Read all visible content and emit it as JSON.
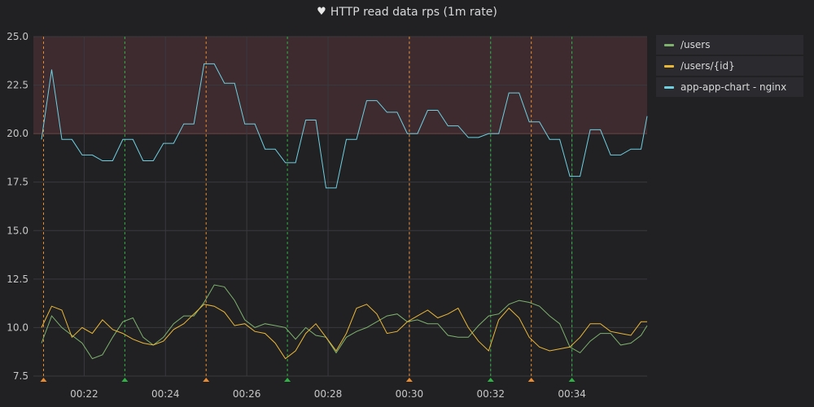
{
  "panel": {
    "title": "HTTP read data rps (1m rate)",
    "icon": "heart-icon"
  },
  "colors": {
    "background": "#212124",
    "grid": "#3a3a3e",
    "threshold_line": "#d44a3a",
    "threshold_fill": "#3d2b2f",
    "annotation_orange": "#ea8c2f",
    "annotation_green": "#2fb344"
  },
  "chart_data": {
    "type": "line",
    "title": "HTTP read data rps (1m rate)",
    "xlabel": "",
    "ylabel": "",
    "x_minutes": [
      20.95,
      21.2,
      21.45,
      21.7,
      21.95,
      22.2,
      22.45,
      22.7,
      22.95,
      23.2,
      23.45,
      23.7,
      23.95,
      24.2,
      24.45,
      24.7,
      24.95,
      25.2,
      25.45,
      25.7,
      25.95,
      26.2,
      26.45,
      26.7,
      26.95,
      27.2,
      27.45,
      27.7,
      27.95,
      28.2,
      28.45,
      28.7,
      28.95,
      29.2,
      29.45,
      29.7,
      29.95,
      30.2,
      30.45,
      30.7,
      30.95,
      31.2,
      31.45,
      31.7,
      31.95,
      32.2,
      32.45,
      32.7,
      32.95,
      33.2,
      33.45,
      33.7,
      33.95,
      34.2,
      34.45,
      34.7,
      34.95,
      35.2,
      35.45,
      35.7,
      35.85
    ],
    "xtick_labels": [
      "00:22",
      "00:24",
      "00:26",
      "00:28",
      "00:30",
      "00:32",
      "00:34"
    ],
    "xtick_values": [
      22,
      24,
      26,
      28,
      30,
      32,
      34
    ],
    "xlim": [
      20.75,
      35.85
    ],
    "ylim": [
      7.5,
      25.0
    ],
    "yticks": [
      7.5,
      10.0,
      12.5,
      15.0,
      17.5,
      20.0,
      22.5,
      25.0
    ],
    "ytick_labels": [
      "7.5",
      "10.0",
      "12.5",
      "15.0",
      "17.5",
      "20.0",
      "22.5",
      "25.0"
    ],
    "grid": true,
    "legend_position": "right",
    "threshold": {
      "value": 20.0,
      "fill_above": true
    },
    "series": [
      {
        "name": "/users",
        "color": "#7eb26d",
        "values": [
          9.2,
          10.6,
          10.0,
          9.6,
          9.2,
          8.4,
          8.6,
          9.5,
          10.3,
          10.5,
          9.5,
          9.1,
          9.5,
          10.2,
          10.6,
          10.6,
          11.3,
          12.2,
          12.1,
          11.4,
          10.4,
          10.0,
          10.2,
          10.1,
          10.0,
          9.4,
          10.0,
          9.6,
          9.5,
          8.7,
          9.5,
          9.8,
          10.0,
          10.3,
          10.6,
          10.7,
          10.3,
          10.4,
          10.2,
          10.2,
          9.6,
          9.5,
          9.5,
          10.1,
          10.6,
          10.7,
          11.2,
          11.4,
          11.3,
          11.1,
          10.6,
          10.2,
          9.0,
          8.7,
          9.3,
          9.7,
          9.7,
          9.1,
          9.2,
          9.6,
          10.1
        ]
      },
      {
        "name": "/users/{id}",
        "color": "#eab839",
        "values": [
          10.0,
          11.1,
          10.9,
          9.5,
          10.0,
          9.7,
          10.4,
          9.9,
          9.7,
          9.4,
          9.2,
          9.1,
          9.3,
          9.9,
          10.2,
          10.7,
          11.2,
          11.1,
          10.8,
          10.1,
          10.2,
          9.8,
          9.7,
          9.2,
          8.4,
          8.8,
          9.7,
          10.2,
          9.5,
          8.8,
          9.7,
          11.0,
          11.2,
          10.7,
          9.7,
          9.8,
          10.3,
          10.6,
          10.9,
          10.5,
          10.7,
          11.0,
          10.0,
          9.3,
          8.8,
          10.4,
          11.0,
          10.5,
          9.5,
          9.0,
          8.8,
          8.9,
          9.0,
          9.5,
          10.2,
          10.2,
          9.8,
          9.7,
          9.6,
          10.3,
          10.3
        ]
      },
      {
        "name": "app-app-chart - nginx",
        "color": "#6ed0e0",
        "values": [
          19.7,
          23.3,
          19.7,
          19.7,
          18.9,
          18.9,
          18.6,
          18.6,
          19.7,
          19.7,
          18.6,
          18.6,
          19.5,
          19.5,
          20.5,
          20.5,
          23.6,
          23.6,
          22.6,
          22.6,
          20.5,
          20.5,
          19.2,
          19.2,
          18.5,
          18.5,
          20.7,
          20.7,
          17.2,
          17.2,
          19.7,
          19.7,
          21.7,
          21.7,
          21.1,
          21.1,
          20.0,
          20.0,
          21.2,
          21.2,
          20.4,
          20.4,
          19.8,
          19.8,
          20.0,
          20.0,
          22.1,
          22.1,
          20.6,
          20.6,
          19.7,
          19.7,
          17.8,
          17.8,
          20.2,
          20.2,
          18.9,
          18.9,
          19.2,
          19.2,
          20.9
        ]
      }
    ],
    "annotations": [
      {
        "minute": 21.0,
        "type": "orange"
      },
      {
        "minute": 23.0,
        "type": "green"
      },
      {
        "minute": 25.0,
        "type": "orange"
      },
      {
        "minute": 27.0,
        "type": "green"
      },
      {
        "minute": 30.0,
        "type": "orange"
      },
      {
        "minute": 32.0,
        "type": "green"
      },
      {
        "minute": 33.0,
        "type": "orange"
      },
      {
        "minute": 34.0,
        "type": "green"
      }
    ]
  }
}
